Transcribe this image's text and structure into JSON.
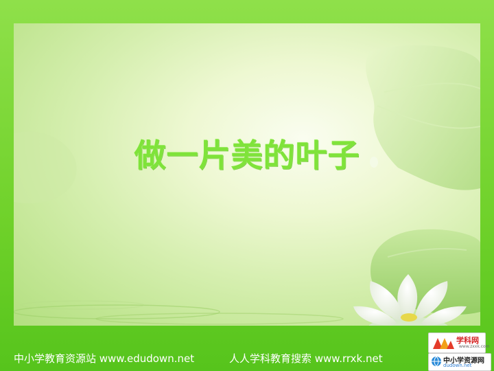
{
  "slide": {
    "title": "做一片美的叶子",
    "title_color": "#7fe33a"
  },
  "footer": {
    "left_text": "中小学教育资源站 www.edudown.net",
    "right_text": "人人学科教育搜索 www.rrxk.net"
  },
  "logos": {
    "xueke": {
      "name": "学科网",
      "sub": "www.zxxk.com"
    },
    "zhongxiaoxue": {
      "name": "中小学资源网",
      "sub": "dudown.net"
    }
  },
  "colors": {
    "frame_green": "#6fd12a",
    "panel_light": "#eef8d2"
  }
}
